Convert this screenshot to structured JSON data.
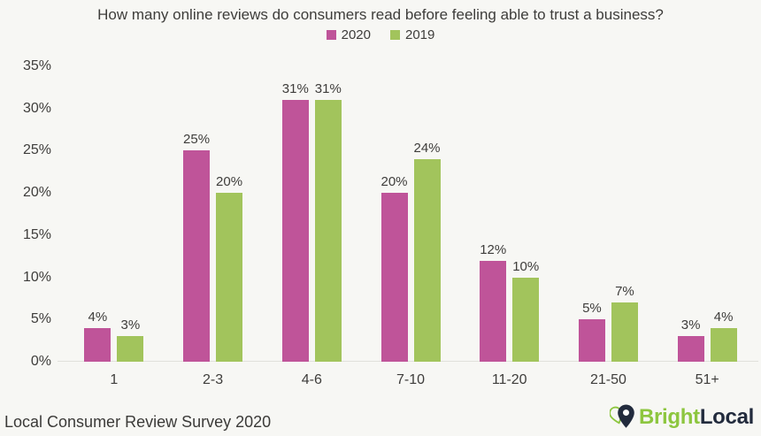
{
  "chart_data": {
    "type": "bar",
    "title": "How many online reviews do consumers read before feeling able to trust a business?",
    "categories": [
      "1",
      "2-3",
      "4-6",
      "7-10",
      "11-20",
      "21-50",
      "51+"
    ],
    "series": [
      {
        "name": "2020",
        "color": "#bf5499",
        "values": [
          4,
          25,
          31,
          20,
          12,
          5,
          3
        ]
      },
      {
        "name": "2019",
        "color": "#a2c45c",
        "values": [
          3,
          20,
          31,
          24,
          10,
          7,
          4
        ]
      }
    ],
    "value_suffix": "%",
    "ylim": [
      0,
      35
    ],
    "ytick_step": 5,
    "yticks": [
      "0%",
      "5%",
      "10%",
      "15%",
      "20%",
      "25%",
      "30%",
      "35%"
    ],
    "grid": false,
    "legend_position": "top-center",
    "bar_labels": true
  },
  "footer": {
    "source": "Local Consumer Review Survey 2020",
    "brand": {
      "bright": "Bright",
      "local": "Local"
    }
  },
  "colors": {
    "background": "#f7f7f4",
    "text": "#3e3d3b",
    "axis_line": "#e0e0db",
    "series_2020": "#bf5499",
    "series_2019": "#a2c45c",
    "brand_green": "#8dc63f",
    "brand_navy": "#222b3d"
  }
}
